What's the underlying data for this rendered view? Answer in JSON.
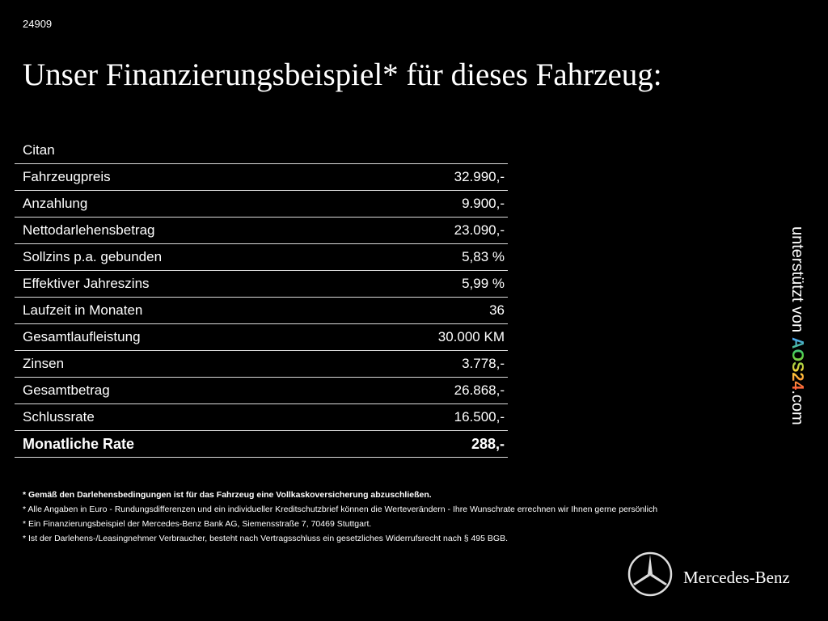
{
  "header": {
    "id": "24909",
    "title": "Unser Finanzierungsbeispiel* für dieses Fahrzeug:"
  },
  "table": {
    "model": "Citan",
    "rows": [
      [
        "Fahrzeugpreis",
        "32.990,-"
      ],
      [
        "Anzahlung",
        "9.900,-"
      ],
      [
        "Nettodarlehensbetrag",
        "23.090,-"
      ],
      [
        "Sollzins p.a. gebunden",
        "5,83 %"
      ],
      [
        "Effektiver Jahreszins",
        "5,99 %"
      ],
      [
        "Laufzeit in Monaten",
        "36"
      ],
      [
        "Gesamtlaufleistung",
        "30.000 KM"
      ],
      [
        "Zinsen",
        "3.778,-"
      ],
      [
        "Gesamtbetrag",
        "26.868,-"
      ],
      [
        "Schlussrate",
        "16.500,-"
      ]
    ],
    "total": [
      "Monatliche Rate",
      "288,-"
    ]
  },
  "footnotes": [
    "* Gemäß den Darlehensbedingungen ist für das Fahrzeug eine Vollkaskoversicherung abzuschließen.",
    "* Alle Angaben in Euro - Rundungsdifferenzen und ein individueller Kreditschutzbrief können die Werteverändern - Ihre Wunschrate errechnen wir Ihnen gerne persönlich",
    "* Ein Finanzierungsbeispiel der Mercedes-Benz Bank AG, Siemensstraße 7, 70469 Stuttgart.",
    "* Ist der Darlehens-/Leasingnehmer Verbraucher, besteht nach Vertragsschluss ein gesetzliches Widerrufsrecht nach § 495 BGB."
  ],
  "side": {
    "prefix": "unterstützt von",
    "brand": "AOS24",
    "suffix": ".com"
  },
  "logo": {
    "text": "Mercedes-Benz"
  }
}
